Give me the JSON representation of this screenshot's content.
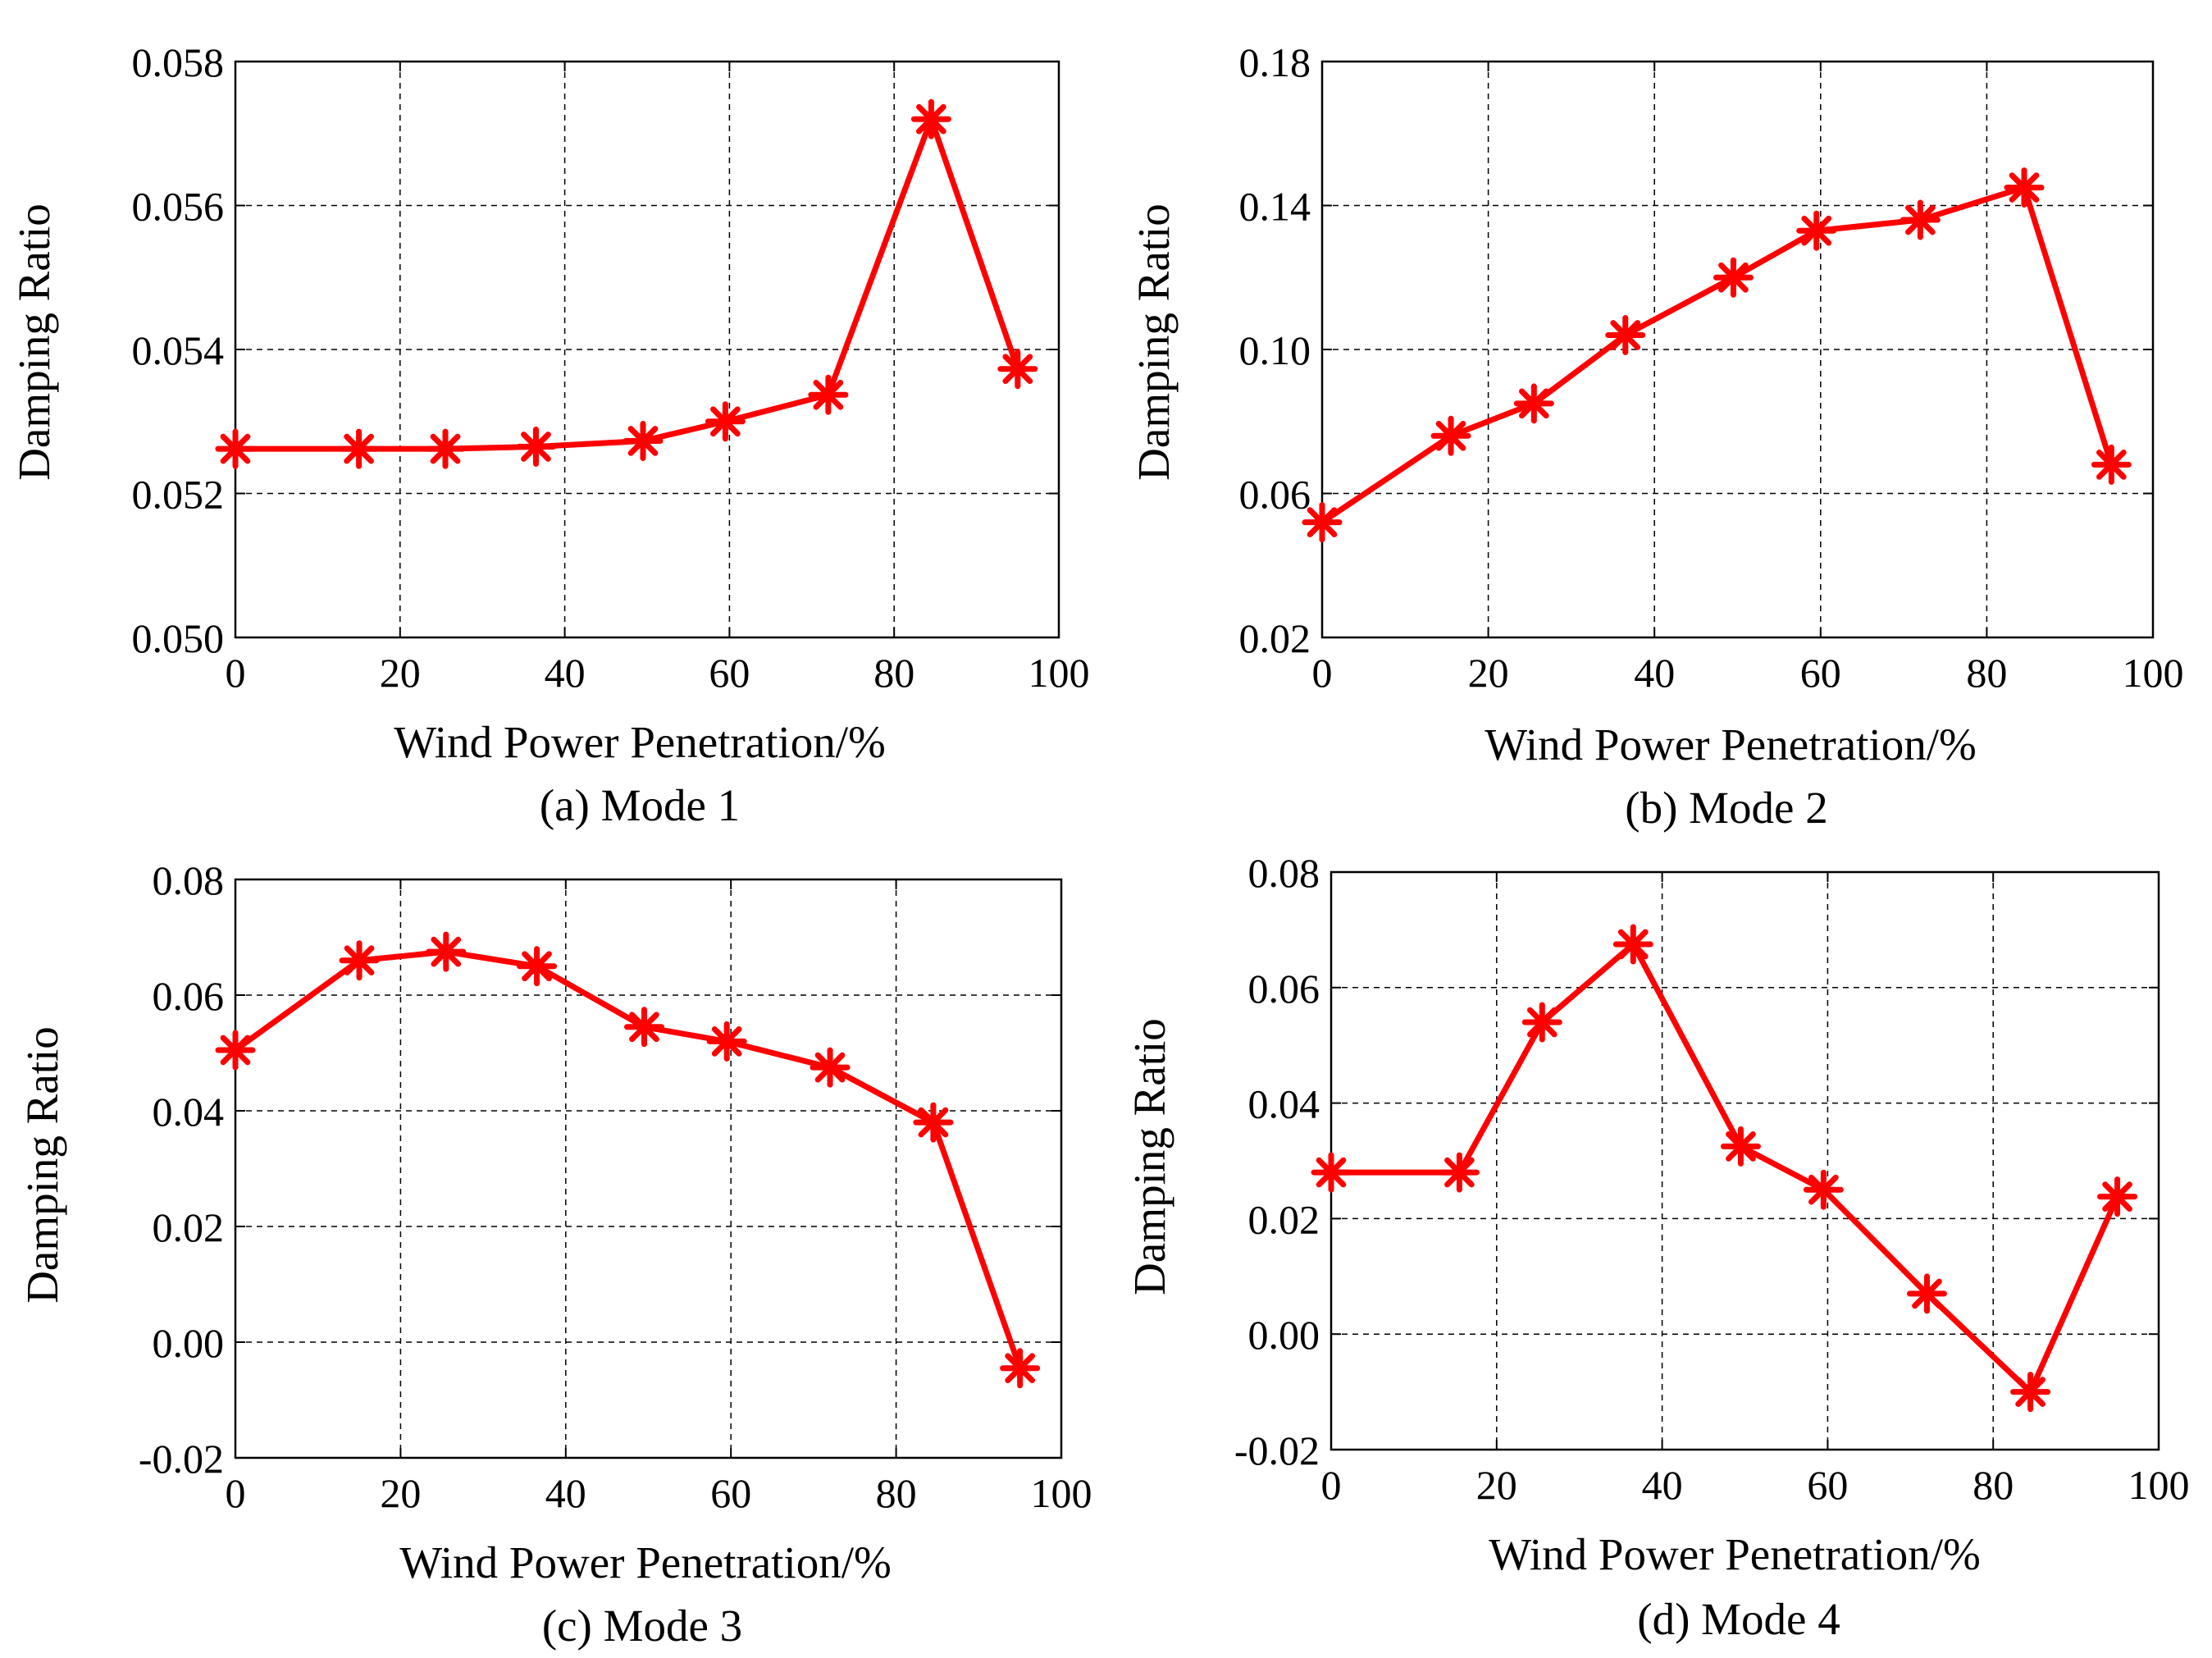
{
  "colors": {
    "series": "#ff0000",
    "axes": "#000000",
    "grid": "#000000",
    "background": "#ffffff"
  },
  "chart_data": [
    {
      "type": "line",
      "title": "(a) Mode 1",
      "xlabel": "Wind Power Penetration/%",
      "ylabel": "Damping Ratio",
      "xlim": [
        0,
        100
      ],
      "ylim": [
        0.05,
        0.058
      ],
      "xticks": [
        "0",
        "20",
        "40",
        "60",
        "80",
        "100"
      ],
      "yticks": [
        "0.050",
        "0.052",
        "0.054",
        "0.056",
        "0.058"
      ],
      "grid": true,
      "marker": "asterisk",
      "x": [
        0,
        15,
        25.5,
        36.5,
        49.5,
        59.5,
        72,
        84.5,
        95
      ],
      "values": [
        0.05262,
        0.05262,
        0.05262,
        0.05265,
        0.05273,
        0.053,
        0.05337,
        0.0572,
        0.05373
      ]
    },
    {
      "type": "line",
      "title": "(b) Mode 2",
      "xlabel": "Wind Power Penetration/%",
      "ylabel": "Damping Ratio",
      "xlim": [
        0,
        100
      ],
      "ylim": [
        0.02,
        0.18
      ],
      "xticks": [
        "0",
        "20",
        "40",
        "60",
        "80",
        "100"
      ],
      "yticks": [
        "0.02",
        "0.06",
        "0.10",
        "0.14",
        "0.18"
      ],
      "grid": true,
      "marker": "asterisk",
      "x": [
        0,
        15.5,
        25.5,
        36.5,
        49.5,
        59.5,
        72,
        84.5,
        95
      ],
      "values": [
        0.052,
        0.076,
        0.085,
        0.104,
        0.12,
        0.133,
        0.136,
        0.145,
        0.068
      ]
    },
    {
      "type": "line",
      "title": "(c) Mode 3",
      "xlabel": "Wind Power Penetration/%",
      "ylabel": "Damping Ratio",
      "xlim": [
        0,
        100
      ],
      "ylim": [
        -0.02,
        0.08
      ],
      "xticks": [
        "0",
        "20",
        "40",
        "60",
        "80",
        "100"
      ],
      "yticks": [
        "-0.02",
        "0.00",
        "0.02",
        "0.04",
        "0.06",
        "0.08"
      ],
      "grid": true,
      "marker": "asterisk",
      "x": [
        0,
        15,
        25.5,
        36.5,
        49.5,
        59.5,
        72,
        84.5,
        95
      ],
      "values": [
        0.0505,
        0.066,
        0.0675,
        0.065,
        0.0545,
        0.052,
        0.0475,
        0.038,
        -0.0045
      ]
    },
    {
      "type": "line",
      "title": "(d) Mode 4",
      "xlabel": "Wind Power Penetration/%",
      "ylabel": "Damping Ratio",
      "xlim": [
        0,
        100
      ],
      "ylim": [
        -0.02,
        0.08
      ],
      "xticks": [
        "0",
        "20",
        "40",
        "60",
        "80",
        "100"
      ],
      "yticks": [
        "-0.02",
        "0.00",
        "0.02",
        "0.04",
        "0.06",
        "0.08"
      ],
      "grid": true,
      "marker": "asterisk",
      "x": [
        0,
        15.5,
        25.5,
        36.5,
        49.5,
        59.5,
        72,
        84.5,
        95
      ],
      "values": [
        0.028,
        0.028,
        0.054,
        0.0675,
        0.0325,
        0.025,
        0.007,
        -0.01,
        0.0238
      ]
    }
  ]
}
